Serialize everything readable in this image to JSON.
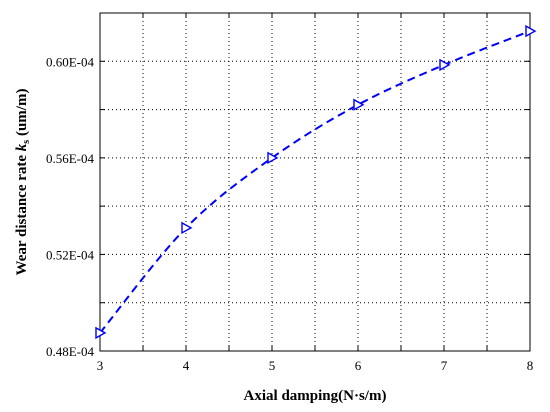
{
  "chart_data": {
    "type": "line",
    "xlabel": "Axial damping(N·s/m)",
    "ylabel_main": "Wear distance rate ",
    "ylabel_k": "k",
    "ylabel_sub": "s",
    "ylabel_unit": " (um/m)",
    "xlim": [
      3,
      8
    ],
    "ylim": [
      4.8e-05,
      6.2e-05
    ],
    "x_ticks": [
      3,
      4,
      5,
      6,
      7,
      8
    ],
    "x_tick_labels": [
      "3",
      "4",
      "5",
      "6",
      "7",
      "8"
    ],
    "y_ticks": [
      4.8e-05,
      5.2e-05,
      5.6e-05,
      6e-05
    ],
    "y_tick_labels": [
      "0.48E-04",
      "0.52E-04",
      "0.56E-04",
      "0.60E-04"
    ],
    "y_grid": [
      4.8e-05,
      5e-05,
      5.2e-05,
      5.4e-05,
      5.6e-05,
      5.8e-05,
      6e-05,
      6.2e-05
    ],
    "x_grid": [
      3,
      3.5,
      4,
      4.5,
      5,
      5.5,
      6,
      6.5,
      7,
      7.5,
      8
    ],
    "grid": true,
    "series": [
      {
        "x": [
          3,
          4,
          5,
          6,
          7,
          8
        ],
        "y": [
          4.875e-05,
          5.31e-05,
          5.6e-05,
          5.82e-05,
          5.985e-05,
          6.125e-05
        ],
        "color": "#0000ff",
        "line_style": "dashed",
        "marker": "triangle-right"
      }
    ]
  }
}
